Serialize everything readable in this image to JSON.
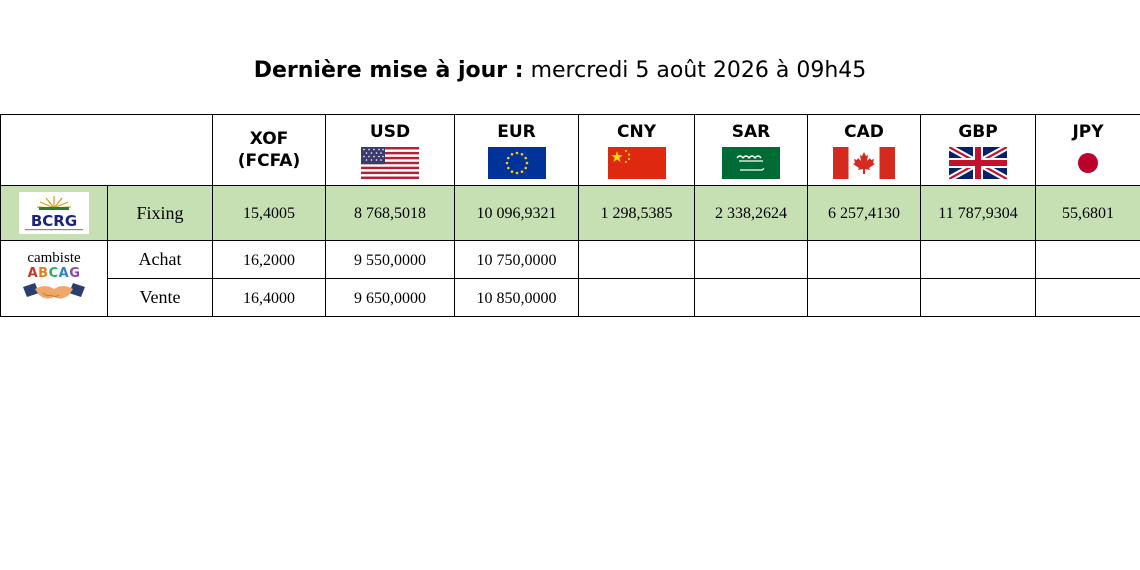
{
  "header": {
    "title_bold": "Dernière mise à jour :",
    "title_date": "mercredi 5 août 2026 à 09h45"
  },
  "currencies": [
    {
      "code": "XOF",
      "sub": "(FCFA)",
      "flag": "none"
    },
    {
      "code": "USD",
      "flag": "us-flag"
    },
    {
      "code": "EUR",
      "flag": "eu-flag"
    },
    {
      "code": "CNY",
      "flag": "china-flag"
    },
    {
      "code": "SAR",
      "flag": "saudi-flag"
    },
    {
      "code": "CAD",
      "flag": "canada-flag"
    },
    {
      "code": "GBP",
      "flag": "uk-flag"
    },
    {
      "code": "JPY",
      "flag": "japan-flag"
    }
  ],
  "fixing": {
    "source_logo": "BCRG",
    "label": "Fixing",
    "values": [
      "15,4005",
      "8 768,5018",
      "10 096,9321",
      "1 298,5385",
      "2 338,2624",
      "6 257,4130",
      "11 787,9304",
      "55,6801"
    ]
  },
  "cambiste": {
    "name": "cambiste",
    "logo": "ABCAG",
    "achat": {
      "label": "Achat",
      "values": [
        "16,2000",
        "9 550,0000",
        "10 750,0000",
        "",
        "",
        "",
        "",
        ""
      ]
    },
    "vente": {
      "label": "Vente",
      "values": [
        "16,4000",
        "9 650,0000",
        "10 850,0000",
        "",
        "",
        "",
        "",
        ""
      ]
    }
  },
  "colors": {
    "fixing_row": "#c6e0b4",
    "abcag_letters": [
      "#c0392b",
      "#e67e22",
      "#27ae60",
      "#2e86c1",
      "#8e44ad"
    ]
  }
}
